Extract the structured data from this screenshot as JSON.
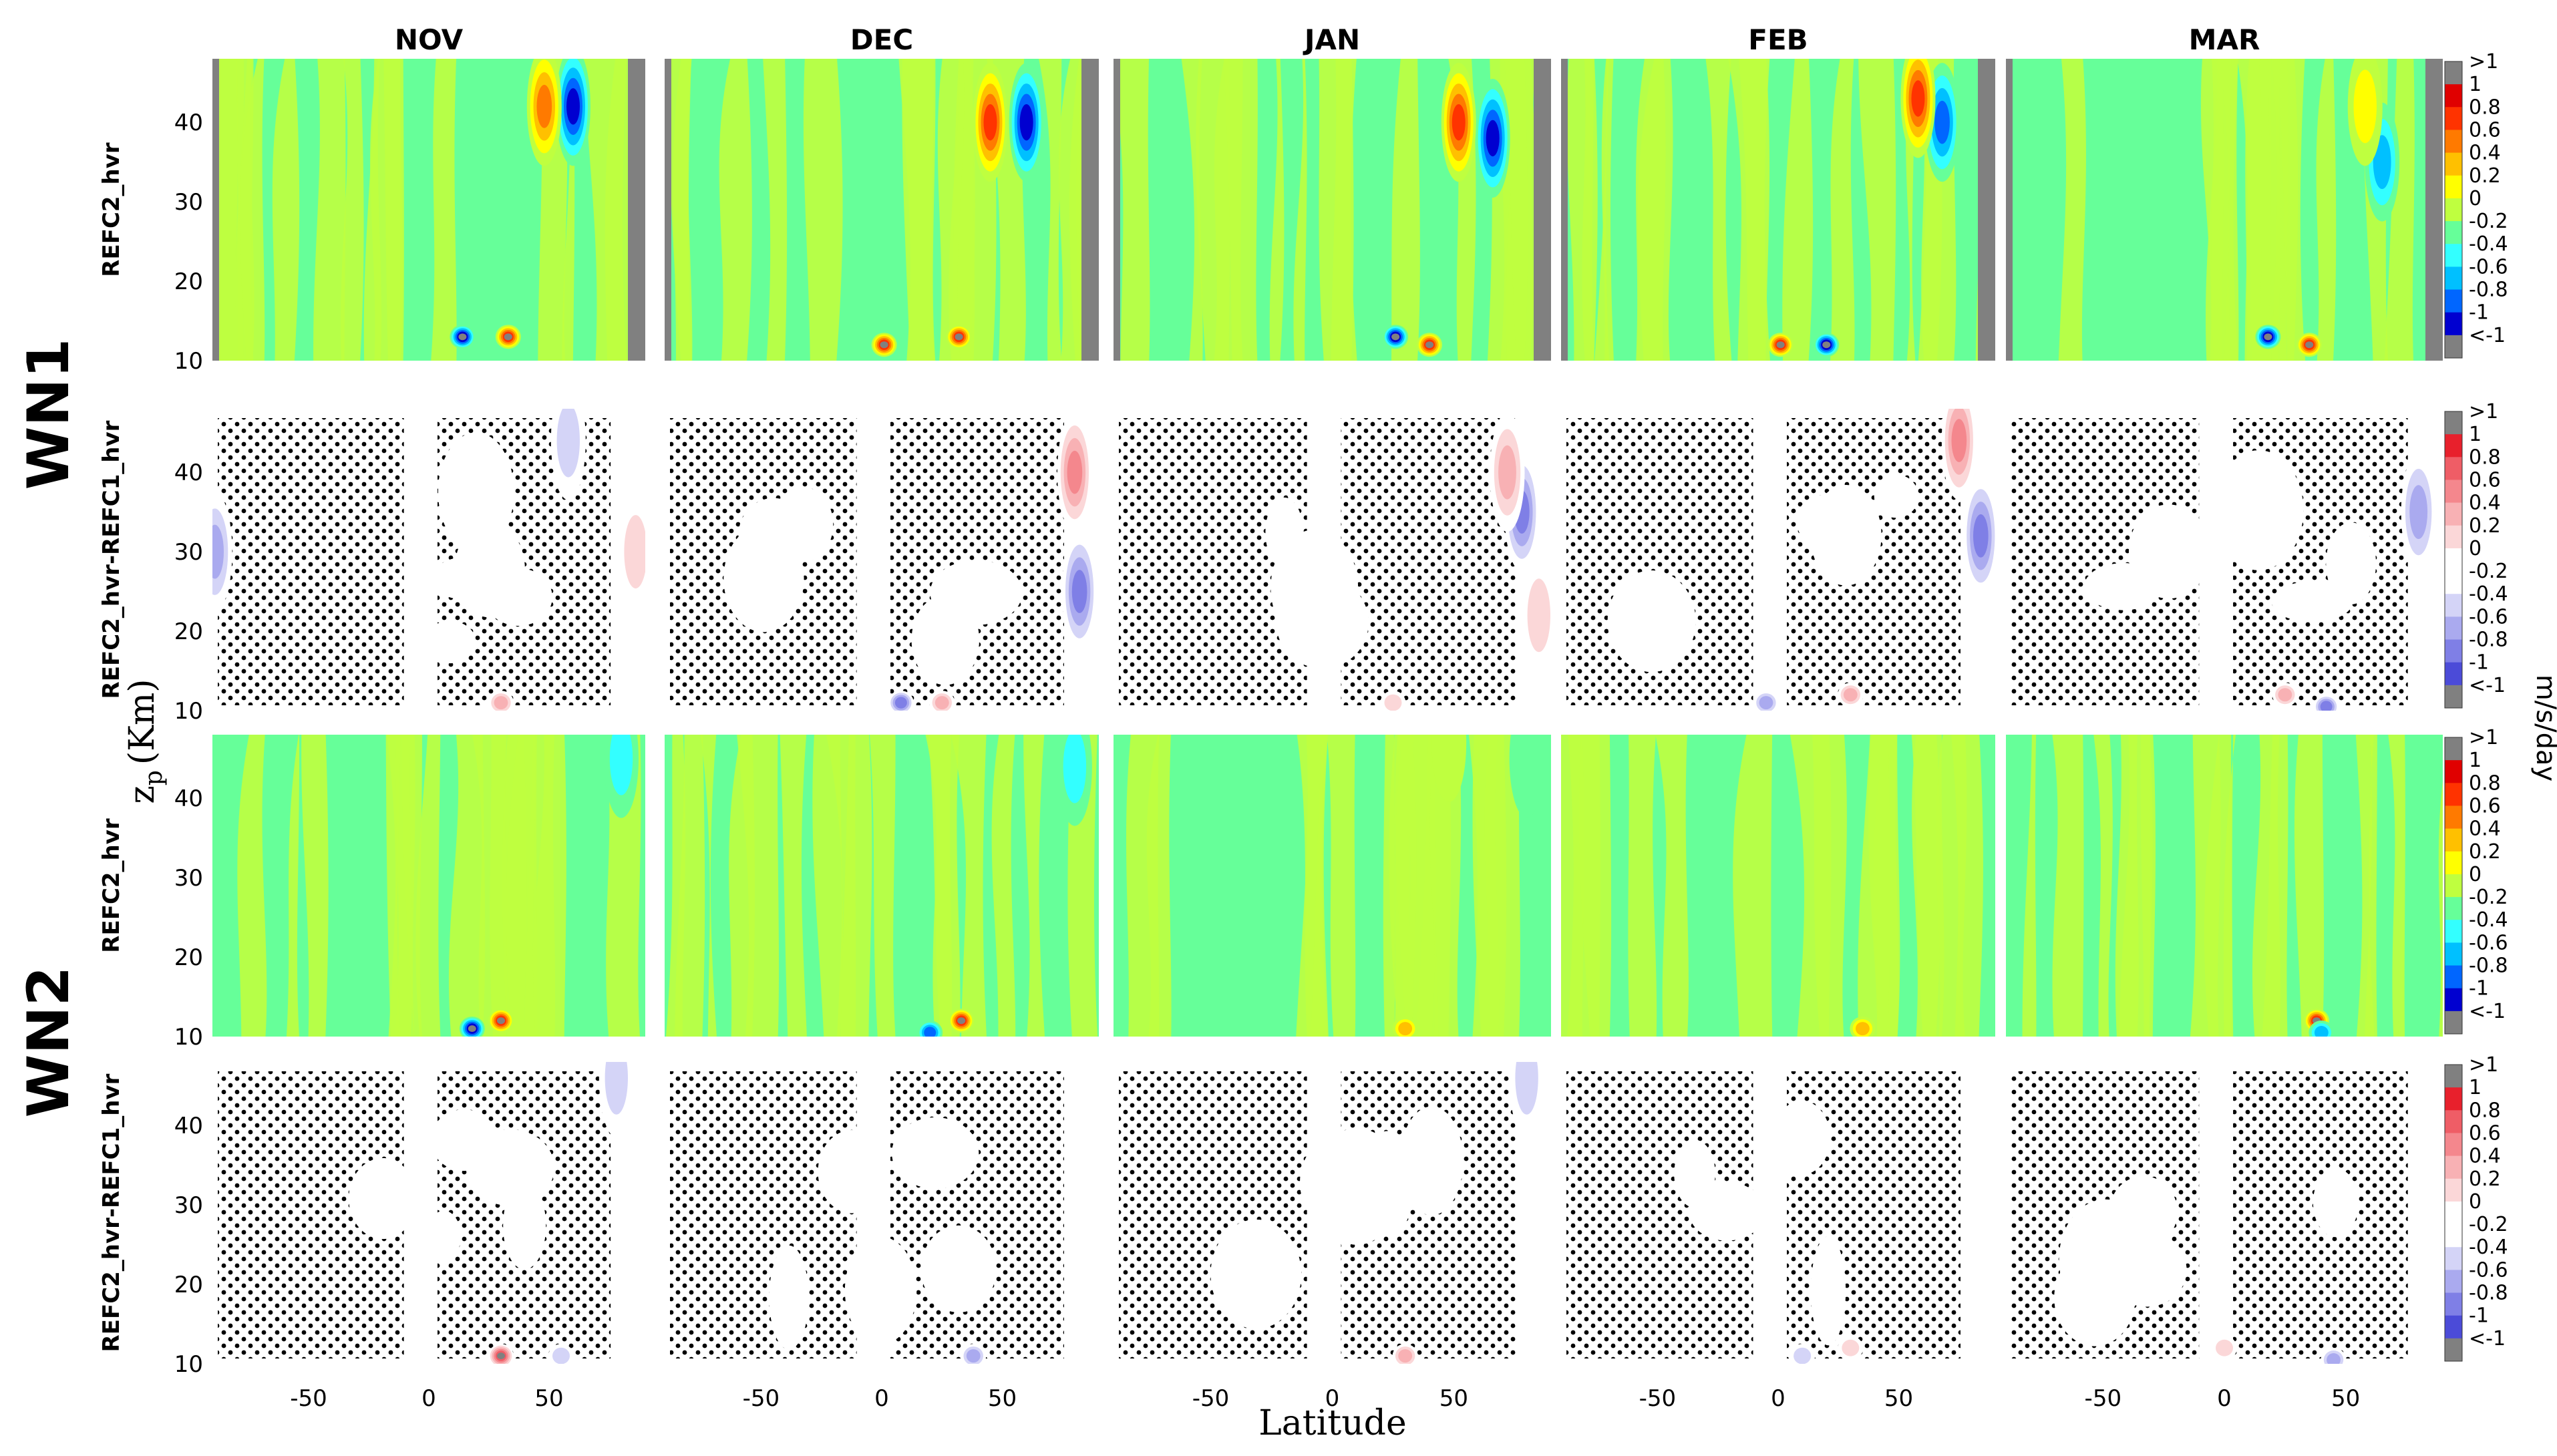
{
  "figure": {
    "columns": [
      "NOV",
      "DEC",
      "JAN",
      "FEB",
      "MAR"
    ],
    "groups": [
      {
        "label": "WN1",
        "rows": [
          {
            "label": "REFC2_hvr",
            "kind": "field"
          },
          {
            "label": "REFC2_hvr-REFC1_hvr",
            "kind": "diff"
          }
        ]
      },
      {
        "label": "WN2",
        "rows": [
          {
            "label": "REFC2_hvr",
            "kind": "field"
          },
          {
            "label": "REFC2_hvr-REFC1_hvr",
            "kind": "diff"
          }
        ]
      }
    ],
    "xlabel": "Latitude",
    "ylabel": "z",
    "ylabel_sub": "p",
    "ylabel_unit": "(Km)",
    "colorbar_unit": "m/s/day",
    "colorbar_ticks": [
      ">1",
      "1",
      "0.8",
      "0.6",
      "0.4",
      "0.2",
      "0",
      "-0.2",
      "-0.4",
      "-0.6",
      "-0.8",
      "-1",
      "<-1"
    ],
    "diverging_colors": [
      "#808080",
      "#e00000",
      "#ff3300",
      "#ff7a00",
      "#ffc000",
      "#ffff00",
      "#bfff3f",
      "#66ff99",
      "#33ffff",
      "#00c0ff",
      "#0066ff",
      "#0000d0",
      "#808080"
    ],
    "difference_colors": [
      "#808080",
      "#e8202c",
      "#ef5d66",
      "#f4878d",
      "#f8b1b4",
      "#fbd7d8",
      "#ffffff",
      "#ffffff",
      "#d4d4f7",
      "#aaaaef",
      "#7f7fe6",
      "#4b4bd8",
      "#808080"
    ],
    "background_green": "#66ff99",
    "stipple_color": "#000000"
  },
  "chart_data": {
    "type": "heatmap",
    "title": "",
    "xlabel": "Latitude",
    "ylabel": "z_p (Km)",
    "x_ticks": [
      -50,
      0,
      50
    ],
    "y_ticks": [
      10,
      20,
      30,
      40
    ],
    "xlim": [
      -90,
      90
    ],
    "ylim": [
      10,
      48
    ],
    "colorbar": {
      "label": "m/s/day",
      "min": -1,
      "max": 1,
      "levels": [
        -1,
        -0.8,
        -0.6,
        -0.4,
        -0.2,
        0,
        0.2,
        0.4,
        0.6,
        0.8,
        1
      ],
      "extend": "both"
    },
    "panels": [
      {
        "row": "WN1 REFC2_hvr",
        "month": "NOV",
        "features": [
          {
            "lat": 60,
            "z": 42,
            "value": -1.0
          },
          {
            "lat": 48,
            "z": 42,
            "value": 0.8
          },
          {
            "lat": 33,
            "z": 13,
            "value": 1.0
          },
          {
            "lat": 14,
            "z": 13,
            "value": -1.0
          }
        ]
      },
      {
        "row": "WN1 REFC2_hvr",
        "month": "DEC",
        "features": [
          {
            "lat": 60,
            "z": 40,
            "value": -1.0
          },
          {
            "lat": 45,
            "z": 40,
            "value": 1.0
          },
          {
            "lat": 1,
            "z": 12,
            "value": 1.0
          },
          {
            "lat": 32,
            "z": 13,
            "value": 1.0
          }
        ]
      },
      {
        "row": "WN1 REFC2_hvr",
        "month": "JAN",
        "features": [
          {
            "lat": 66,
            "z": 38,
            "value": -1.0
          },
          {
            "lat": 52,
            "z": 40,
            "value": 1.0
          },
          {
            "lat": 26,
            "z": 13,
            "value": -1.0
          },
          {
            "lat": 40,
            "z": 12,
            "value": 1.0
          }
        ]
      },
      {
        "row": "WN1 REFC2_hvr",
        "month": "FEB",
        "features": [
          {
            "lat": 68,
            "z": 40,
            "value": -0.8
          },
          {
            "lat": 58,
            "z": 43,
            "value": 1.0
          },
          {
            "lat": 1,
            "z": 12,
            "value": 1.0
          },
          {
            "lat": 20,
            "z": 12,
            "value": -1.0
          }
        ]
      },
      {
        "row": "WN1 REFC2_hvr",
        "month": "MAR",
        "features": [
          {
            "lat": 65,
            "z": 35,
            "value": -0.6
          },
          {
            "lat": 58,
            "z": 42,
            "value": 0.4
          },
          {
            "lat": 35,
            "z": 12,
            "value": 1.0
          },
          {
            "lat": 18,
            "z": 13,
            "value": -1.0
          }
        ]
      },
      {
        "row": "WN1 REFC2_hvr-REFC1_hvr",
        "month": "NOV",
        "features": [
          {
            "lat": -89,
            "z": 30,
            "value": -0.6
          },
          {
            "lat": 58,
            "z": 44,
            "value": -0.4
          },
          {
            "lat": 86,
            "z": 30,
            "value": 0.4
          },
          {
            "lat": 30,
            "z": 11,
            "value": 0.6
          }
        ]
      },
      {
        "row": "WN1 REFC2_hvr-REFC1_hvr",
        "month": "DEC",
        "features": [
          {
            "lat": 80,
            "z": 40,
            "value": 0.8
          },
          {
            "lat": 82,
            "z": 25,
            "value": -0.8
          },
          {
            "lat": 8,
            "z": 11,
            "value": -0.8
          },
          {
            "lat": 25,
            "z": 11,
            "value": 0.6
          }
        ]
      },
      {
        "row": "WN1 REFC2_hvr-REFC1_hvr",
        "month": "JAN",
        "features": [
          {
            "lat": 78,
            "z": 35,
            "value": -0.8
          },
          {
            "lat": 72,
            "z": 40,
            "value": 0.6
          },
          {
            "lat": 85,
            "z": 22,
            "value": 0.4
          },
          {
            "lat": 25,
            "z": 11,
            "value": 0.4
          }
        ]
      },
      {
        "row": "WN1 REFC2_hvr-REFC1_hvr",
        "month": "FEB",
        "features": [
          {
            "lat": 75,
            "z": 44,
            "value": 0.8
          },
          {
            "lat": 84,
            "z": 32,
            "value": -0.8
          },
          {
            "lat": 30,
            "z": 12,
            "value": 0.6
          },
          {
            "lat": -5,
            "z": 11,
            "value": -0.6
          }
        ]
      },
      {
        "row": "WN1 REFC2_hvr-REFC1_hvr",
        "month": "MAR",
        "features": [
          {
            "lat": 80,
            "z": 35,
            "value": -0.6
          },
          {
            "lat": 25,
            "z": 12,
            "value": 0.6
          },
          {
            "lat": 42,
            "z": 10.5,
            "value": -0.8
          }
        ]
      },
      {
        "row": "WN2 REFC2_hvr",
        "month": "NOV",
        "features": [
          {
            "lat": 80,
            "z": 45,
            "value": -0.4
          },
          {
            "lat": 30,
            "z": 12,
            "value": 1.0
          },
          {
            "lat": 18,
            "z": 11,
            "value": -1.0
          }
        ]
      },
      {
        "row": "WN2 REFC2_hvr",
        "month": "DEC",
        "features": [
          {
            "lat": 80,
            "z": 44,
            "value": -0.4
          },
          {
            "lat": 33,
            "z": 12,
            "value": 1.0
          },
          {
            "lat": 20,
            "z": 10.5,
            "value": -0.8
          }
        ]
      },
      {
        "row": "WN2 REFC2_hvr",
        "month": "JAN",
        "features": [
          {
            "lat": 80,
            "z": 45,
            "value": -0.2
          },
          {
            "lat": 48,
            "z": 47,
            "value": 0.2
          },
          {
            "lat": 30,
            "z": 11,
            "value": 0.6
          }
        ]
      },
      {
        "row": "WN2 REFC2_hvr",
        "month": "FEB",
        "features": [
          {
            "lat": 35,
            "z": 11,
            "value": 0.6
          }
        ]
      },
      {
        "row": "WN2 REFC2_hvr",
        "month": "MAR",
        "features": [
          {
            "lat": 38,
            "z": 12,
            "value": 1.0
          },
          {
            "lat": 40,
            "z": 10.5,
            "value": -0.6
          }
        ]
      },
      {
        "row": "WN2 REFC2_hvr-REFC1_hvr",
        "month": "NOV",
        "features": [
          {
            "lat": 78,
            "z": 46,
            "value": -0.4
          },
          {
            "lat": 30,
            "z": 11,
            "value": 1.0
          },
          {
            "lat": 55,
            "z": 11,
            "value": -0.4
          }
        ]
      },
      {
        "row": "WN2 REFC2_hvr-REFC1_hvr",
        "month": "DEC",
        "features": [
          {
            "lat": 38,
            "z": 11,
            "value": -0.6
          },
          {
            "lat": 0,
            "z": 12,
            "value": 0.2
          }
        ]
      },
      {
        "row": "WN2 REFC2_hvr-REFC1_hvr",
        "month": "JAN",
        "features": [
          {
            "lat": 80,
            "z": 46,
            "value": -0.4
          },
          {
            "lat": 30,
            "z": 11,
            "value": 0.6
          }
        ]
      },
      {
        "row": "WN2 REFC2_hvr-REFC1_hvr",
        "month": "FEB",
        "features": [
          {
            "lat": 30,
            "z": 12,
            "value": 0.4
          },
          {
            "lat": 10,
            "z": 11,
            "value": -0.4
          }
        ]
      },
      {
        "row": "WN2 REFC2_hvr-REFC1_hvr",
        "month": "MAR",
        "features": [
          {
            "lat": 0,
            "z": 12,
            "value": 0.4
          },
          {
            "lat": 45,
            "z": 10.5,
            "value": -0.6
          }
        ]
      }
    ]
  }
}
